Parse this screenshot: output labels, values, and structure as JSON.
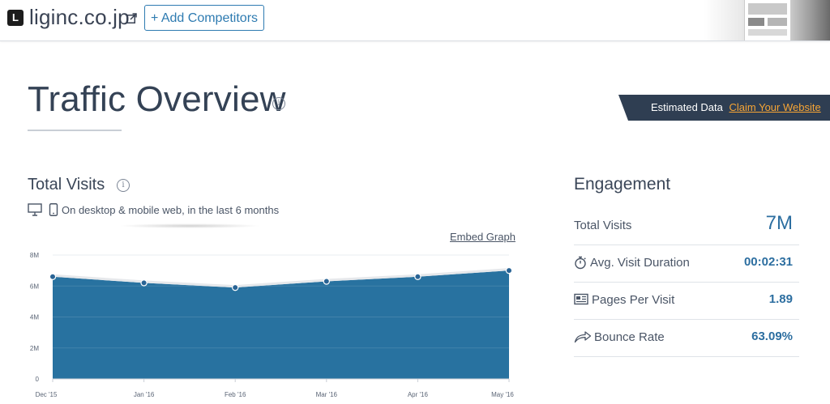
{
  "header": {
    "favicon_letter": "L",
    "domain": "liginc.co.jp",
    "add_competitors_label": "+ Add Competitors"
  },
  "overview": {
    "title": "Traffic Overview",
    "info_glyph": "i",
    "estimated_label": "Estimated Data",
    "claim_link": "Claim Your Website"
  },
  "total_visits": {
    "title": "Total Visits",
    "info_glyph": "i",
    "device_note": "On desktop & mobile web, in the last 6 months",
    "embed_link": "Embed Graph"
  },
  "chart_data": {
    "type": "area",
    "categories": [
      "Dec '15",
      "Jan '16",
      "Feb '16",
      "Mar '16",
      "Apr '16",
      "May '16"
    ],
    "values": [
      6.6,
      6.2,
      5.9,
      6.3,
      6.6,
      7.0
    ],
    "value_unit": "M",
    "ylim": [
      0,
      8
    ],
    "yticks": [
      "0",
      "2M",
      "4M",
      "6M",
      "8M"
    ],
    "title": "",
    "xlabel": "",
    "ylabel": "",
    "grid": true,
    "fill_color": "#2872a0",
    "line_color": "#e6e8eb",
    "point_color": "#2a6495"
  },
  "engagement": {
    "title": "Engagement",
    "rows": [
      {
        "label": "Total Visits",
        "value": "7M",
        "icon": ""
      },
      {
        "label": "Avg. Visit Duration",
        "value": "00:02:31",
        "icon": "stopwatch-icon"
      },
      {
        "label": "Pages Per Visit",
        "value": "1.89",
        "icon": "pages-icon"
      },
      {
        "label": "Bounce Rate",
        "value": "63.09%",
        "icon": "bounce-arrow-icon"
      }
    ]
  },
  "colors": {
    "accent": "#2e7bb1",
    "banner": "#2f3e52",
    "link_orange": "#f7a535",
    "value_blue": "#2c6ea0"
  }
}
